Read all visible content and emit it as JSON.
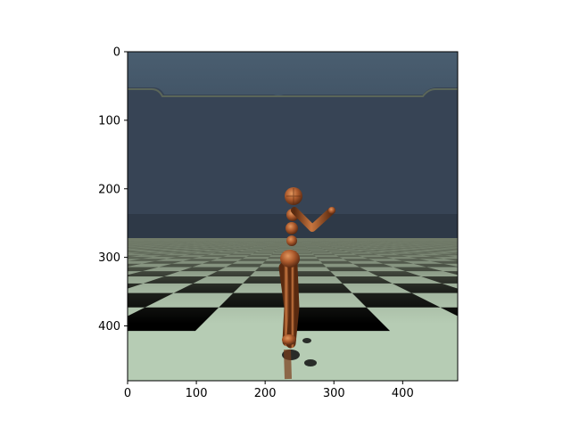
{
  "figure": {
    "image_description_kind": "rendered physics simulation frame",
    "x_ticks": [
      "0",
      "100",
      "200",
      "300",
      "400"
    ],
    "y_ticks": [
      "0",
      "100",
      "200",
      "300",
      "400"
    ],
    "x_tick_values": [
      0,
      100,
      200,
      300,
      400
    ],
    "y_tick_values": [
      0,
      100,
      200,
      300,
      400
    ],
    "xlim": [
      0,
      480
    ],
    "ylim": [
      480,
      0
    ]
  },
  "colors": {
    "sky_top": "#45596a",
    "sky_mid": "#364354",
    "horizon_band": "#2f3a48",
    "ground_far": "#6b7362",
    "tile_light": "#b6ccb4",
    "tile_dark": "#000000",
    "body_copper": "#a0552a",
    "body_highlight": "#d88a55",
    "body_shadow": "#5a2a10"
  }
}
